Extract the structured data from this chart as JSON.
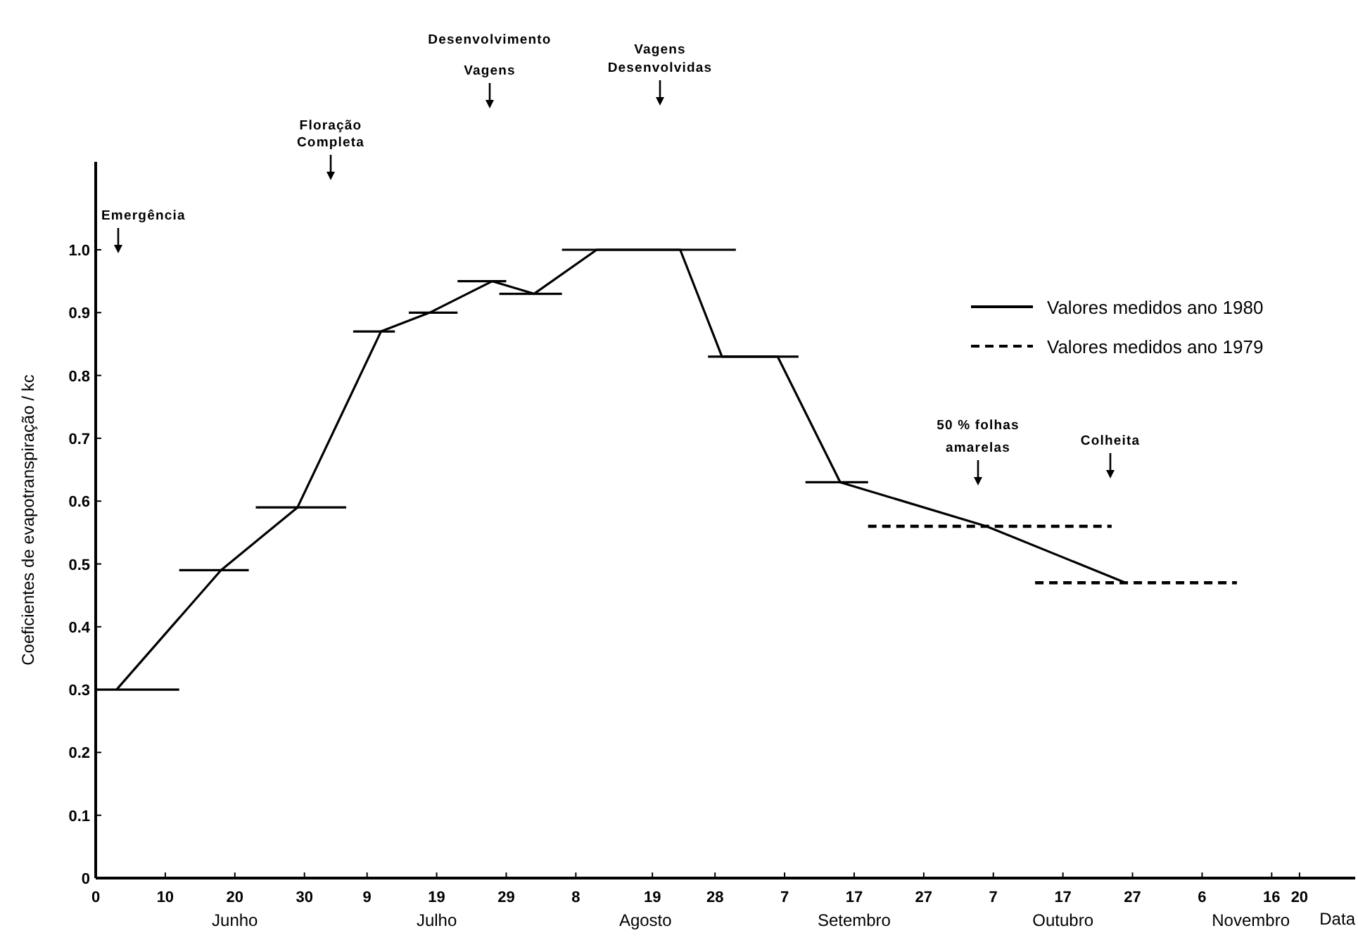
{
  "chart_data": {
    "type": "line",
    "xlabel": "Data",
    "ylabel": "Coeficientes de evapotranspiração / kc",
    "xlim": [
      "--05-31",
      "--11-28"
    ],
    "ylim": [
      0,
      1.14
    ],
    "xticks": [
      {
        "value": "--05-31",
        "label": "0"
      },
      {
        "value": "--06-10",
        "label": "10"
      },
      {
        "value": "--06-20",
        "label": "20"
      },
      {
        "value": "--06-30",
        "label": "30"
      },
      {
        "value": "--07-09",
        "label": "9"
      },
      {
        "value": "--07-19",
        "label": "19"
      },
      {
        "value": "--07-29",
        "label": "29"
      },
      {
        "value": "--08-08",
        "label": "8"
      },
      {
        "value": "--08-19",
        "label": "19"
      },
      {
        "value": "--08-28",
        "label": "28"
      },
      {
        "value": "--09-07",
        "label": "7"
      },
      {
        "value": "--09-17",
        "label": "17"
      },
      {
        "value": "--09-27",
        "label": "27"
      },
      {
        "value": "--10-07",
        "label": "7"
      },
      {
        "value": "--10-17",
        "label": "17"
      },
      {
        "value": "--10-27",
        "label": "27"
      },
      {
        "value": "--11-06",
        "label": "6"
      },
      {
        "value": "--11-16",
        "label": "16"
      },
      {
        "value": "--11-20",
        "label": "20"
      }
    ],
    "yticks": [
      0,
      0.1,
      0.2,
      0.3,
      0.4,
      0.5,
      0.6,
      0.7,
      0.8,
      0.9,
      {
        "value": 1,
        "label": "1.0"
      }
    ],
    "legend": "top right",
    "marker": "none",
    "grid": false,
    "series": [
      {
        "name": "Valores medidos ano 1980",
        "color": "#000000",
        "line_style": "solid",
        "x": [
          "--06-03",
          "--06-18",
          "--06-29",
          "--07-11",
          "--07-18",
          "--07-27",
          "--08-02",
          "--08-11",
          "--08-23",
          "--08-29",
          "--09-06",
          "--09-15",
          "--10-06",
          "--10-26"
        ],
        "values": [
          0.3,
          0.49,
          0.59,
          0.87,
          0.9,
          0.95,
          0.93,
          1.0,
          1.0,
          0.83,
          0.83,
          0.63,
          0.56,
          0.47
        ]
      },
      {
        "color": "#000000",
        "line_style": "solid",
        "x": [
          "--05-31",
          "--06-12",
          null,
          "--06-12",
          "--06-22",
          null,
          "--06-23",
          "--07-06",
          null,
          "--07-07",
          "--07-13",
          null,
          "--07-15",
          "--07-22",
          null,
          "--07-22",
          "--07-29",
          null,
          "--07-28",
          "--08-06",
          null,
          "--08-06",
          "--08-31",
          null,
          "--08-27",
          "--09-09",
          null,
          "--09-10",
          "--09-19"
        ],
        "values": [
          0.3,
          0.3,
          null,
          0.49,
          0.49,
          null,
          0.59,
          0.59,
          null,
          0.87,
          0.87,
          null,
          0.9,
          0.9,
          null,
          0.95,
          0.95,
          null,
          0.93,
          0.93,
          null,
          1.0,
          1.0,
          null,
          0.83,
          0.83,
          null,
          0.63,
          0.63
        ]
      },
      {
        "name": "Valores medidos ano 1979",
        "color": "#000000",
        "line_style": "dashed",
        "x": [
          "--09-19",
          "--10-24",
          null,
          "--10-13",
          "--11-11"
        ],
        "values": [
          0.56,
          0.56,
          null,
          0.47,
          0.47
        ]
      }
    ],
    "annotations": [
      "Junho",
      "Julho",
      "Agosto",
      "Setembro",
      "Outubro",
      "Novembro",
      "Emergência",
      "Floração\nCompleta",
      "Desenvolvimento\nVagens",
      "Vagens\nDesenvolvidas",
      "50 % folhas\namarelas",
      "Colheita"
    ]
  }
}
